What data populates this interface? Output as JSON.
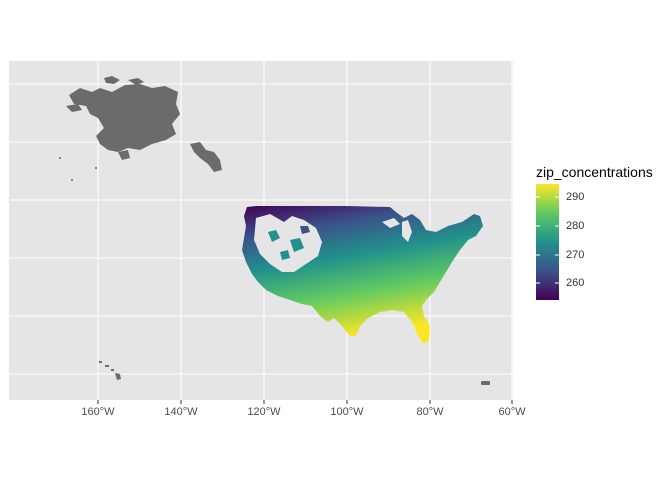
{
  "map": {
    "x_axis": {
      "tick_labels": [
        "160°W",
        "140°W",
        "120°W",
        "100°W",
        "80°W",
        "60°W"
      ]
    },
    "legend": {
      "title": "zip_concentrations",
      "tick_labels": [
        "290",
        "280",
        "270",
        "260"
      ],
      "colors": [
        "#fde725",
        "#5ec962",
        "#21918c",
        "#3b528b",
        "#440154"
      ],
      "placement": "right"
    },
    "regions": [
      "Alaska",
      "Contiguous United States",
      "Hawaii",
      "Puerto Rico"
    ],
    "colors": {
      "panel_background": "#e5e5e5",
      "grid": "#ffffff",
      "unmapped_land": "#6b6b6b"
    }
  },
  "chart_data": {
    "type": "heatmap",
    "title": "",
    "xlabel": "",
    "ylabel": "",
    "x_ticks": [
      "160°W",
      "140°W",
      "120°W",
      "100°W",
      "80°W",
      "60°W"
    ],
    "color_scale": {
      "name": "viridis",
      "min_approx": 255,
      "max_approx": 295,
      "ticks": [
        260,
        270,
        280,
        290
      ]
    },
    "observed_pattern": [
      {
        "region": "Gulf Coast and Florida",
        "level": "high (~290)"
      },
      {
        "region": "Southern California coast",
        "level": "high (~285-290)"
      },
      {
        "region": "Southeast / Texas",
        "level": "medium-high (~280-288)"
      },
      {
        "region": "Midwest",
        "level": "medium (~270-278)"
      },
      {
        "region": "Northern Plains / Upper Midwest",
        "level": "low (~258-265)"
      },
      {
        "region": "New England",
        "level": "low-medium (~265-270)"
      }
    ]
  }
}
